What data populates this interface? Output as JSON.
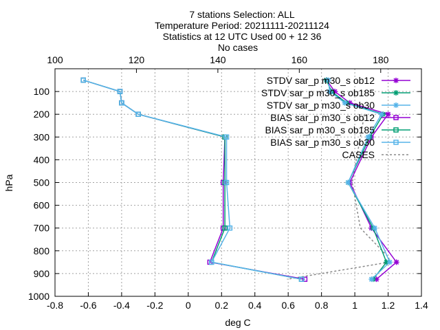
{
  "chart_data": {
    "type": "line",
    "title_lines": [
      "7 stations Selection: ALL",
      "Temperature  Period: 20211111-20211124",
      "Statistics at 12 UTC  Used 00 + 12 36",
      "No cases"
    ],
    "xlabel": "deg C",
    "ylabel": "hPa",
    "xlim": [
      -0.8,
      1.4
    ],
    "ylim": [
      1000,
      0
    ],
    "x_ticks": [
      "-0.8",
      "-0.6",
      "-0.4",
      "-0.2",
      "0",
      "0.2",
      "0.4",
      "0.6",
      "0.8",
      "1",
      "1.2",
      "1.4"
    ],
    "x2lim": [
      100,
      190
    ],
    "x2_ticks": [
      "100",
      "120",
      "140",
      "160",
      "180"
    ],
    "y_ticks": [
      "100",
      "200",
      "300",
      "400",
      "500",
      "600",
      "700",
      "800",
      "900",
      "1000"
    ],
    "grid": true,
    "legend_position": "top-right",
    "series": [
      {
        "name": "STDV sar_p m30_s ob12",
        "color": "#9400d3",
        "marker": "star",
        "dash": "",
        "x": [
          0.83,
          0.88,
          0.97,
          1.2,
          1.1,
          0.97,
          1.1,
          1.25,
          1.13
        ],
        "y": [
          50,
          100,
          150,
          200,
          300,
          500,
          700,
          850,
          925
        ]
      },
      {
        "name": "STDV sar_p m30_s ob185",
        "color": "#009e73",
        "marker": "star",
        "dash": "",
        "x": [
          0.83,
          0.86,
          0.95,
          1.17,
          1.09,
          0.96,
          1.11,
          1.19,
          1.11
        ],
        "y": [
          50,
          100,
          150,
          200,
          300,
          500,
          700,
          850,
          925
        ]
      },
      {
        "name": "STDV sar_p m30_s ob30",
        "color": "#56b4e9",
        "marker": "star",
        "dash": "",
        "x": [
          0.84,
          0.85,
          0.94,
          1.16,
          1.08,
          0.96,
          1.12,
          1.21,
          1.1
        ],
        "y": [
          50,
          100,
          150,
          200,
          300,
          500,
          700,
          850,
          925
        ]
      },
      {
        "name": "BIAS sar_p m30_s ob12",
        "color": "#9400d3",
        "marker": "square",
        "dash": "",
        "x": [
          -0.63,
          -0.41,
          -0.4,
          -0.3,
          0.22,
          0.21,
          0.21,
          0.13,
          0.7
        ],
        "y": [
          50,
          100,
          150,
          200,
          300,
          500,
          700,
          850,
          925
        ]
      },
      {
        "name": "BIAS sar_p m30_s ob185",
        "color": "#009e73",
        "marker": "square",
        "dash": "",
        "x": [
          -0.63,
          -0.41,
          -0.4,
          -0.3,
          0.22,
          0.22,
          0.22,
          0.14,
          0.68
        ],
        "y": [
          50,
          100,
          150,
          200,
          300,
          500,
          700,
          850,
          925
        ]
      },
      {
        "name": "BIAS sar_p m30_s ob30",
        "color": "#56b4e9",
        "marker": "square",
        "dash": "",
        "x": [
          -0.63,
          -0.41,
          -0.4,
          -0.3,
          0.23,
          0.23,
          0.25,
          0.14,
          0.68
        ],
        "y": [
          50,
          100,
          150,
          200,
          300,
          500,
          700,
          850,
          925
        ]
      }
    ],
    "cases": {
      "name": "CASES",
      "color": "#888888",
      "dash": "3,3",
      "axis": "x2",
      "x": [
        176,
        175,
        174,
        173,
        175,
        182,
        182,
        157
      ],
      "y": [
        200,
        300,
        400,
        500,
        700,
        830,
        850,
        925
      ]
    }
  }
}
